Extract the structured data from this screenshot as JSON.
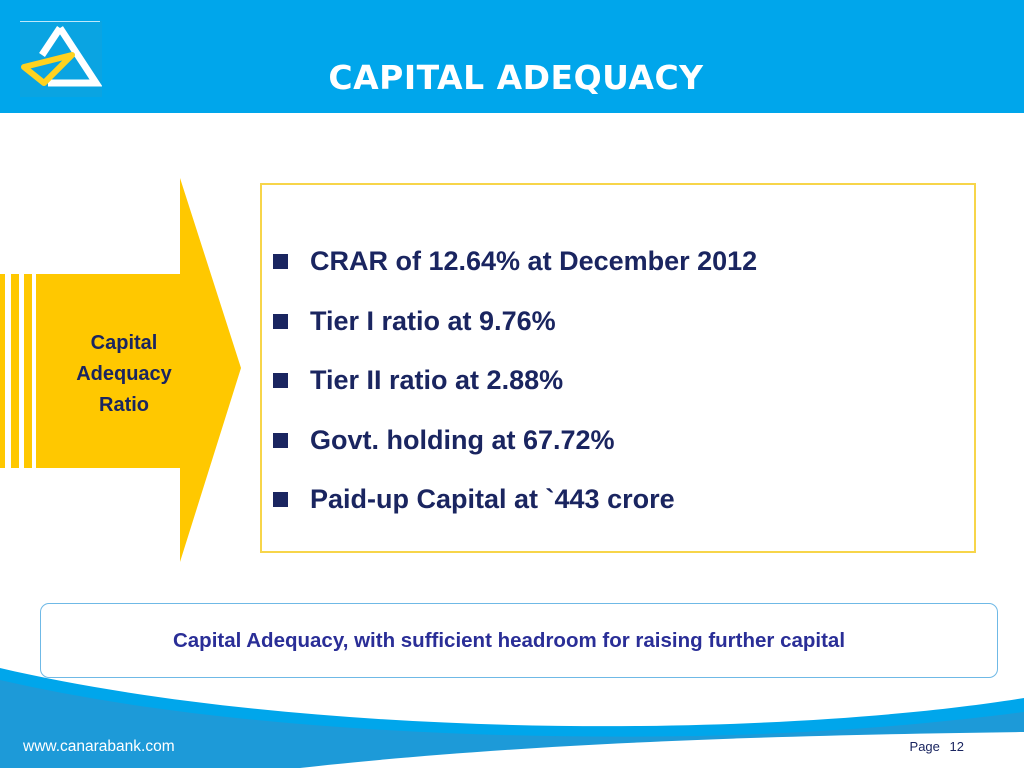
{
  "header": {
    "title": "CAPITAL ADEQUACY",
    "logo": "canara-bank-triangle-logo",
    "bg_color": "#00a6eb"
  },
  "arrow": {
    "label_lines": [
      "Capital",
      "Adequacy",
      "Ratio"
    ],
    "color": "#ffc800"
  },
  "bullets": [
    "CRAR of 12.64% at December 2012",
    "Tier I ratio at 9.76%",
    "Tier II ratio at 2.88%",
    "Govt. holding at 67.72%",
    "Paid-up Capital at `443 crore"
  ],
  "summary": {
    "text": "Capital Adequacy, with sufficient headroom for raising further capital"
  },
  "footer": {
    "website": "www.canarabank.com",
    "page_label": "Page",
    "page_number": "12"
  },
  "colors": {
    "text_navy": "#1a2560",
    "summary_text": "#2a2e97",
    "border_yellow": "#f7d54a"
  }
}
